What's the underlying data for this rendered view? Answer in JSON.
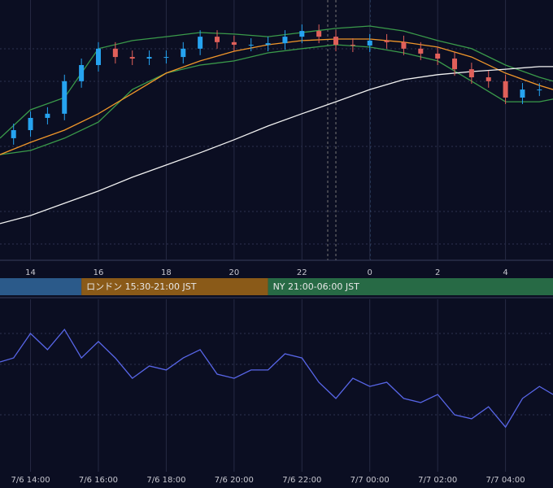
{
  "chart_data": [
    {
      "type": "candlestick",
      "x": [
        13.5,
        14,
        14.5,
        15,
        15.5,
        16,
        16.5,
        17,
        17.5,
        18,
        18.5,
        19,
        19.5,
        20,
        20.5,
        21,
        21.5,
        22,
        22.5,
        23,
        23.5,
        24,
        24.5,
        25,
        25.5,
        26,
        26.5,
        27,
        27.5,
        28,
        28.5,
        29
      ],
      "open": [
        46.9,
        50,
        54.7,
        56.3,
        68.8,
        75,
        81.3,
        78.1,
        77.5,
        78.1,
        78.1,
        81.3,
        85.9,
        83.8,
        82.8,
        82.8,
        83.4,
        85.9,
        88.1,
        85.9,
        82.8,
        82.5,
        84.4,
        83.8,
        81.3,
        79.4,
        77.5,
        73.4,
        70.3,
        68.8,
        62.5,
        65.6
      ],
      "high": [
        52.5,
        57.2,
        58.8,
        71.3,
        77.5,
        83.8,
        83.8,
        80.6,
        80.6,
        80.6,
        83.8,
        88.4,
        88.4,
        86.3,
        85.3,
        85.9,
        88.4,
        90.6,
        90.6,
        88.4,
        85.3,
        86.9,
        86.9,
        86.3,
        83.8,
        81.9,
        80,
        75.9,
        72.8,
        71.3,
        68.1,
        68.1
      ],
      "low": [
        44.4,
        47.5,
        52.2,
        53.8,
        66.3,
        72.5,
        75.6,
        75,
        75,
        75.6,
        75.6,
        78.8,
        81.3,
        80.3,
        80.3,
        80.3,
        80.9,
        83.4,
        83.4,
        80.3,
        80,
        80,
        81.3,
        78.8,
        76.9,
        75,
        70.9,
        67.8,
        66.3,
        60,
        60,
        63.1
      ],
      "close": [
        50,
        54.7,
        56.3,
        68.8,
        75,
        81.3,
        78.1,
        77.5,
        78.1,
        78.1,
        81.3,
        85.9,
        83.8,
        82.8,
        82.8,
        83.4,
        85.9,
        88.1,
        85.9,
        82.8,
        82.5,
        84.4,
        83.8,
        81.3,
        79.4,
        77.5,
        73.4,
        70.3,
        68.8,
        62.5,
        65.6,
        65.6
      ],
      "up_color": "#26a3f0",
      "down_color": "#e0605a",
      "series": [
        {
          "color": "#3a9a4a",
          "x": [
            13.1,
            14,
            15,
            16,
            17,
            18,
            19,
            20,
            21,
            22,
            23,
            24,
            25,
            26,
            27,
            28,
            29,
            29.4
          ],
          "values": [
            46.9,
            57.8,
            62.5,
            81.3,
            84.4,
            85.9,
            87.5,
            86.9,
            85.9,
            87.5,
            89.1,
            90,
            88.1,
            84.4,
            81.3,
            75,
            70.3,
            68.8
          ]
        },
        {
          "color": "#3a9a4a",
          "x": [
            13.1,
            14,
            15,
            16,
            17,
            18,
            19,
            20,
            21,
            22,
            23,
            24,
            25,
            26,
            27,
            28,
            29,
            29.4
          ],
          "values": [
            40.6,
            42.2,
            46.9,
            53.1,
            65.6,
            71.9,
            75,
            76.6,
            79.7,
            81.3,
            82.8,
            81.9,
            79.7,
            76.6,
            68.8,
            60.9,
            60.9,
            61.9
          ]
        },
        {
          "color": "#f0962a",
          "x": [
            13.1,
            14,
            15,
            16,
            17,
            18,
            19,
            20,
            21,
            22,
            23,
            24,
            25,
            26,
            27,
            28,
            29,
            29.4
          ],
          "values": [
            40.6,
            45.3,
            50,
            56.3,
            64.1,
            71.9,
            76.6,
            80.3,
            82.8,
            84.4,
            85,
            85,
            83.8,
            81.9,
            78.1,
            71.9,
            67.2,
            65.6
          ]
        },
        {
          "color": "#f2f2f2",
          "x": [
            13.1,
            14,
            15,
            16,
            17,
            18,
            19,
            20,
            21,
            22,
            23,
            24,
            25,
            26,
            27,
            28,
            29,
            29.4
          ],
          "values": [
            14.1,
            17.2,
            21.9,
            26.6,
            31.9,
            36.6,
            41.3,
            46.3,
            51.6,
            56.3,
            60.9,
            65.6,
            69.4,
            71.3,
            72.5,
            73.4,
            74.4,
            74.4
          ]
        }
      ],
      "xlim": [
        13.1,
        29.4
      ],
      "ylim": [
        0,
        100
      ],
      "xticks": [
        14,
        16,
        18,
        20,
        22,
        {
          "value": 24,
          "label": "0"
        },
        {
          "value": 26,
          "label": "2"
        },
        {
          "value": 28,
          "label": "4"
        }
      ],
      "sessions": [
        {
          "start": 13.1,
          "end": 15.5,
          "color": "#2b5a8a"
        },
        {
          "start": 15.5,
          "end": 21,
          "color": "#8a5a18",
          "label": "ロンドン 15:30-21:00 JST"
        },
        {
          "start": 21,
          "end": 29.4,
          "color": "#276a45",
          "label": "NY 21:00-06:00 JST"
        }
      ]
    },
    {
      "type": "line",
      "x": [
        13.1,
        13.5,
        14,
        14.5,
        15,
        15.5,
        16,
        16.5,
        17,
        17.5,
        18,
        18.5,
        19,
        19.5,
        20,
        20.5,
        21,
        21.5,
        22,
        22.5,
        23,
        23.5,
        24,
        24.5,
        25,
        25.5,
        26,
        26.5,
        27,
        27.5,
        28,
        28.5,
        29,
        29.4
      ],
      "series": [
        {
          "color": "#5866e8",
          "values": [
            63.7,
            66,
            80.2,
            70.8,
            82.5,
            66,
            75.5,
            66,
            54.2,
            61.3,
            59,
            66,
            70.8,
            56.6,
            54.2,
            59,
            59,
            68.4,
            66,
            51.9,
            42.5,
            54.2,
            49.5,
            51.9,
            42.5,
            40.1,
            44.8,
            33,
            30.7,
            37.7,
            25.9,
            42.5,
            49.5,
            44.8
          ]
        }
      ],
      "xlim": [
        13.1,
        29.4
      ],
      "ylim": [
        0,
        100
      ],
      "xticks": [
        {
          "value": 14,
          "label": "7/6 14:00"
        },
        {
          "value": 16,
          "label": "7/6 16:00"
        },
        {
          "value": 18,
          "label": "7/6 18:00"
        },
        {
          "value": 20,
          "label": "7/6 20:00"
        },
        {
          "value": 22,
          "label": "7/6 22:00"
        },
        {
          "value": 24,
          "label": "7/7 00:00"
        },
        {
          "value": 26,
          "label": "7/7 02:00"
        },
        {
          "value": 28,
          "label": "7/7 04:00"
        }
      ]
    }
  ]
}
